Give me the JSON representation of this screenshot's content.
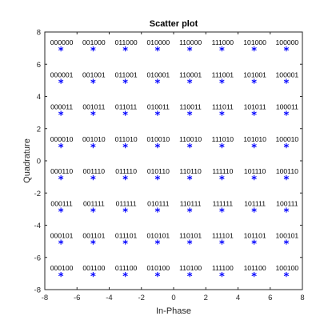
{
  "chart_data": {
    "type": "scatter",
    "title": "Scatter plot",
    "xlabel": "In-Phase",
    "ylabel": "Quadrature",
    "xlim": [
      -8,
      8
    ],
    "ylim": [
      -8,
      8
    ],
    "xticks": [
      -8,
      -6,
      -4,
      -2,
      0,
      2,
      4,
      6,
      8
    ],
    "yticks": [
      -8,
      -6,
      -4,
      -2,
      0,
      2,
      4,
      6,
      8
    ],
    "grid": false,
    "marker": "*",
    "marker_color": "#0000ff",
    "x_levels": [
      -7,
      -5,
      -3,
      -1,
      1,
      3,
      5,
      7
    ],
    "y_levels": [
      7,
      5,
      3,
      1,
      -1,
      -3,
      -5,
      -7
    ],
    "labels": [
      [
        "000000",
        "001000",
        "011000",
        "010000",
        "110000",
        "111000",
        "101000",
        "100000"
      ],
      [
        "000001",
        "001001",
        "011001",
        "010001",
        "110001",
        "111001",
        "101001",
        "100001"
      ],
      [
        "000011",
        "001011",
        "011011",
        "010011",
        "110011",
        "111011",
        "101011",
        "100011"
      ],
      [
        "000010",
        "001010",
        "011010",
        "010010",
        "110010",
        "111010",
        "101010",
        "100010"
      ],
      [
        "000110",
        "001110",
        "011110",
        "010110",
        "110110",
        "111110",
        "101110",
        "100110"
      ],
      [
        "000111",
        "001111",
        "011111",
        "010111",
        "110111",
        "111111",
        "101111",
        "100111"
      ],
      [
        "000101",
        "001101",
        "011101",
        "010101",
        "110101",
        "111101",
        "101101",
        "100101"
      ],
      [
        "000100",
        "001100",
        "011100",
        "010100",
        "110100",
        "111100",
        "101100",
        "100100"
      ]
    ]
  }
}
